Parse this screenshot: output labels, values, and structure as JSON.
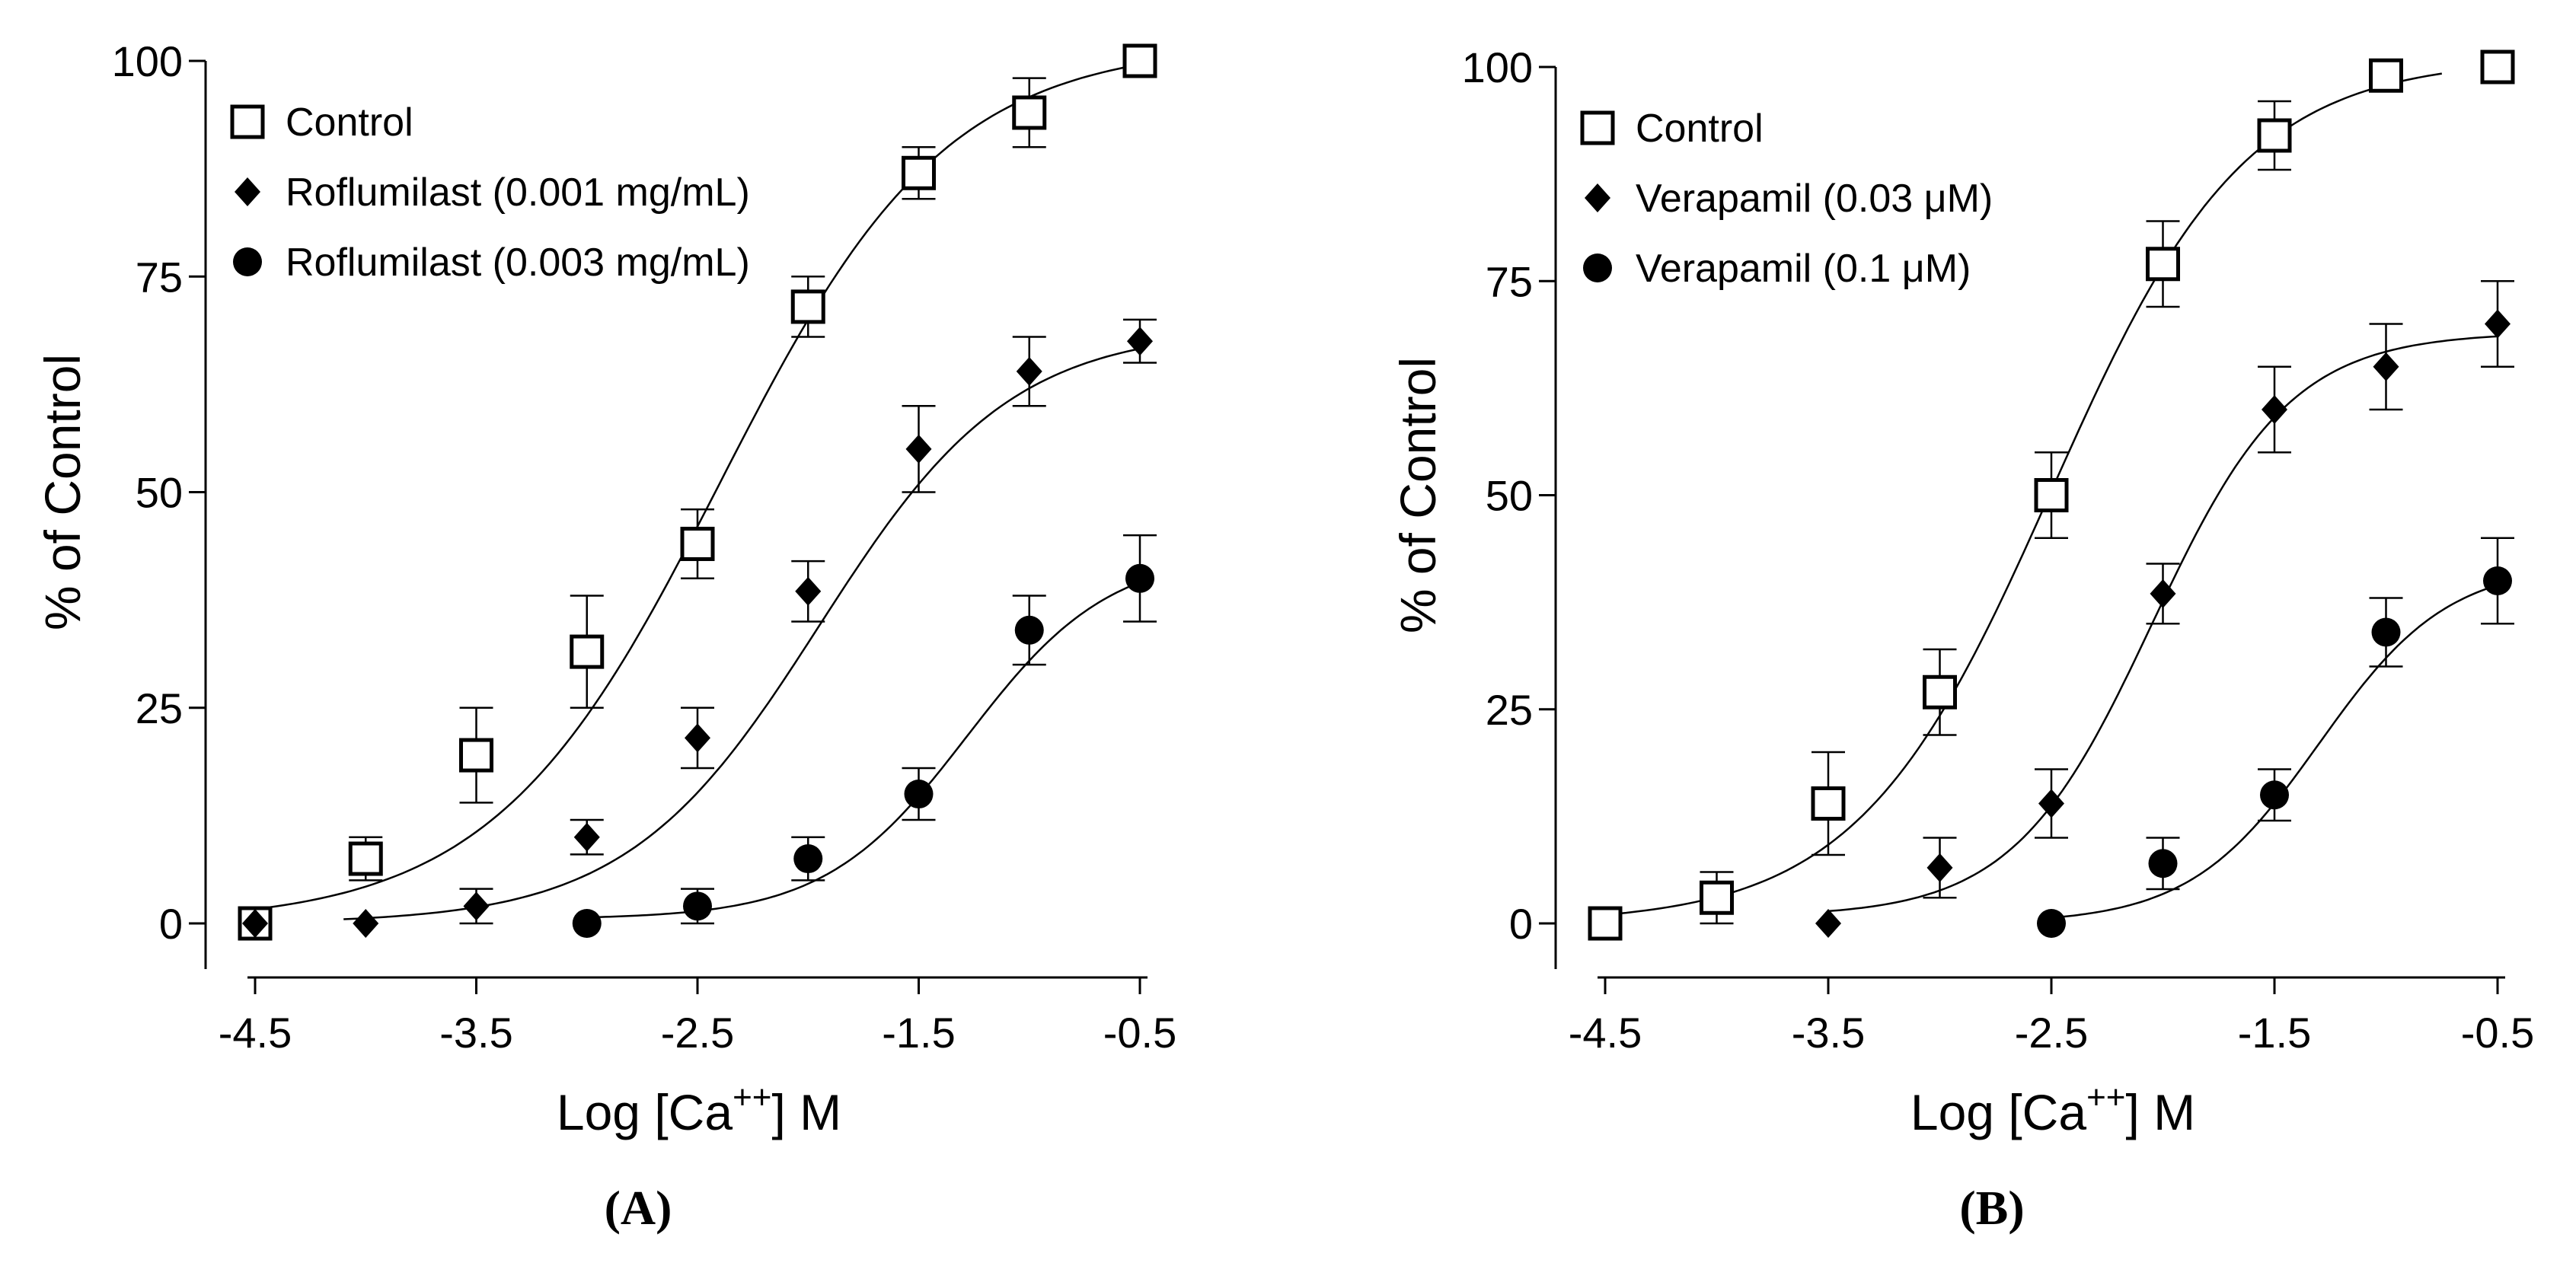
{
  "chart_data": [
    {
      "type": "line",
      "panel": "(A)",
      "xlabel": "Log [Ca",
      "xlabel_sup": "++",
      "xlabel_suffix": "] M",
      "ylabel": "% of Control",
      "xlim": [
        -4.6,
        -0.4
      ],
      "ylim": [
        -5,
        102
      ],
      "xticks": [
        -4.5,
        -3.5,
        -2.5,
        -1.5,
        -0.5
      ],
      "xtick_labels": [
        "-4.5",
        "-3.5",
        "-2.5",
        "-1.5",
        "-0.5"
      ],
      "yticks": [
        0,
        25,
        50,
        75,
        100
      ],
      "ytick_labels": [
        "0",
        "25",
        "50",
        "75",
        "100"
      ],
      "legend_position": "top-left",
      "series": [
        {
          "name": "Control",
          "marker": "open-square",
          "x": [
            -4.5,
            -4.0,
            -3.5,
            -3.0,
            -2.5,
            -2.0,
            -1.5,
            -1.0,
            -0.5
          ],
          "y": [
            0,
            7.5,
            19.5,
            31.5,
            44,
            71.5,
            87,
            94,
            100
          ],
          "err": [
            0,
            2.5,
            5.5,
            6.5,
            4,
            3.5,
            3,
            4,
            0
          ],
          "fit": {
            "bottom": 0,
            "top": 102,
            "logEC50": -2.4,
            "hill": 0.85,
            "x_start": -4.5,
            "x_end": -0.5
          }
        },
        {
          "name": "Roflumilast (0.001 mg/mL)",
          "marker": "filled-diamond",
          "x": [
            -4.5,
            -4.0,
            -3.5,
            -3.0,
            -2.5,
            -2.0,
            -1.5,
            -1.0,
            -0.5
          ],
          "y": [
            0,
            0,
            2,
            10,
            21.5,
            38.5,
            55,
            64,
            67.5
          ],
          "err": [
            0,
            0,
            2,
            2,
            3.5,
            3.5,
            5,
            4,
            2.5
          ],
          "fit": {
            "bottom": 0,
            "top": 69,
            "logEC50": -1.95,
            "hill": 1.0,
            "x_start": -4.1,
            "x_end": -0.5
          }
        },
        {
          "name": "Roflumilast (0.003 mg/mL)",
          "marker": "filled-circle",
          "x": [
            -3.0,
            -2.5,
            -2.0,
            -1.5,
            -1.0,
            -0.5
          ],
          "y": [
            0,
            2,
            7.5,
            15,
            34,
            40
          ],
          "err": [
            0,
            2,
            2.5,
            3,
            4,
            5
          ],
          "fit": {
            "bottom": 0.5,
            "top": 43,
            "logEC50": -1.28,
            "hill": 1.35,
            "x_start": -3.0,
            "x_end": -0.5
          }
        }
      ]
    },
    {
      "type": "line",
      "panel": "(B)",
      "xlabel": "Log [Ca",
      "xlabel_sup": "++",
      "xlabel_suffix": "] M",
      "ylabel": "% of Control",
      "xlim": [
        -4.6,
        -0.4
      ],
      "ylim": [
        -5,
        102
      ],
      "xticks": [
        -4.5,
        -3.5,
        -2.5,
        -1.5,
        -0.5
      ],
      "xtick_labels": [
        "-4.5",
        "-3.5",
        "-2.5",
        "-1.5",
        "-0.5"
      ],
      "yticks": [
        0,
        25,
        50,
        75,
        100
      ],
      "ytick_labels": [
        "0",
        "25",
        "50",
        "75",
        "100"
      ],
      "legend_position": "top-left",
      "series": [
        {
          "name": "Control",
          "marker": "open-square",
          "x": [
            -4.5,
            -4.0,
            -3.5,
            -3.0,
            -2.5,
            -2.0,
            -1.5,
            -1.0,
            -0.5
          ],
          "y": [
            0,
            3,
            14,
            27,
            50,
            77,
            92,
            99,
            100
          ],
          "err": [
            0,
            3,
            6,
            5,
            5,
            5,
            4,
            0,
            0
          ],
          "fit": {
            "bottom": 0,
            "top": 101,
            "logEC50": -2.5,
            "hill": 1.0,
            "x_start": -4.5,
            "x_end": -0.75
          }
        },
        {
          "name": "Verapamil (0.03 μM)",
          "marker": "filled-diamond",
          "x": [
            -3.5,
            -3.0,
            -2.5,
            -2.0,
            -1.5,
            -1.0,
            -0.5
          ],
          "y": [
            0,
            6.5,
            14,
            38.5,
            60,
            65,
            70
          ],
          "err": [
            0,
            3.5,
            4,
            3.5,
            5,
            5,
            5
          ],
          "fit": {
            "bottom": 0.8,
            "top": 69,
            "logEC50": -2.05,
            "hill": 1.4,
            "x_start": -3.5,
            "x_end": -0.5
          }
        },
        {
          "name": "Verapamil (0.1 μM)",
          "marker": "filled-circle",
          "x": [
            -2.5,
            -2.0,
            -1.5,
            -1.0,
            -0.5
          ],
          "y": [
            0,
            7,
            15,
            34,
            40
          ],
          "err": [
            0,
            3,
            3,
            4,
            5
          ],
          "fit": {
            "bottom": 0,
            "top": 42,
            "logEC50": -1.3,
            "hill": 1.5,
            "x_start": -2.5,
            "x_end": -0.5
          }
        }
      ]
    }
  ]
}
